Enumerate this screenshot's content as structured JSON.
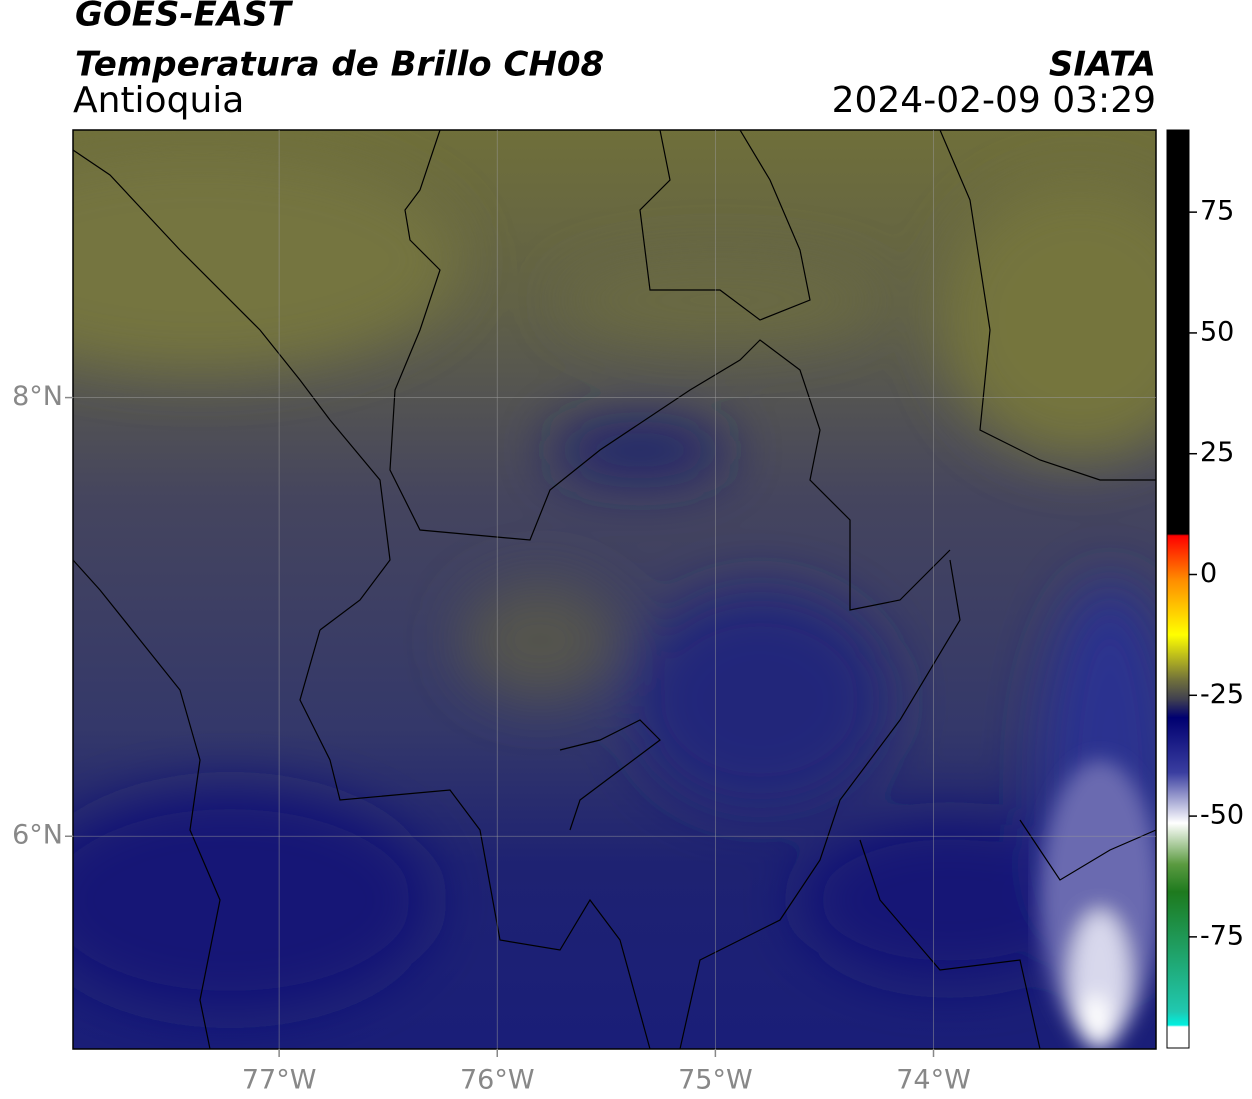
{
  "header": {
    "title_line1": "GOES-EAST",
    "title_line2": "Temperatura de Brillo CH08",
    "region": "Antioquia",
    "source": "SIATA",
    "datetime": "2024-02-09 03:29"
  },
  "map": {
    "xlim": [
      -77.945,
      -72.98
    ],
    "ylim": [
      5.03,
      9.22
    ],
    "xticks": [
      {
        "value": -77,
        "label": "77°W"
      },
      {
        "value": -76,
        "label": "76°W"
      },
      {
        "value": -75,
        "label": "75°W"
      },
      {
        "value": -74,
        "label": "74°W"
      }
    ],
    "yticks": [
      {
        "value": 8,
        "label": "8°N"
      },
      {
        "value": 6,
        "label": "6°N"
      }
    ],
    "grid": true
  },
  "colorbar": {
    "lim": [
      -98,
      92
    ],
    "ticks": [
      75,
      50,
      25,
      0,
      -25,
      -50,
      -75
    ]
  }
}
